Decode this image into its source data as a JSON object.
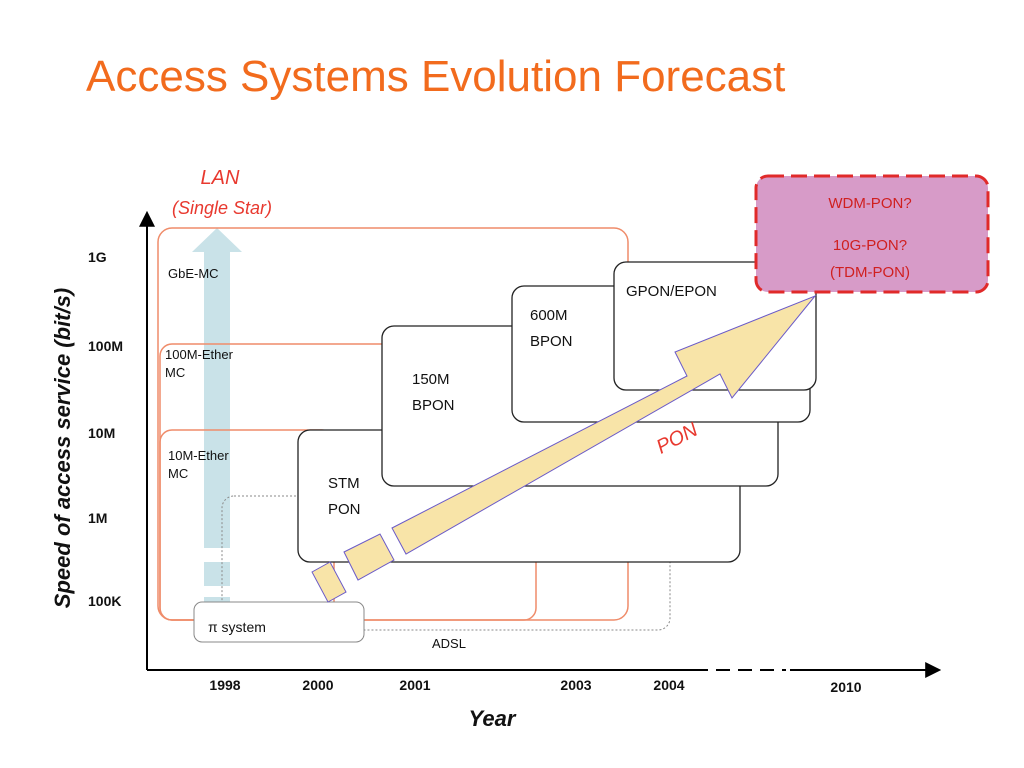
{
  "title": "Access Systems Evolution Forecast",
  "y_axis": {
    "label": "Speed of access service (bit/s)",
    "ticks": [
      "1G",
      "100M",
      "10M",
      "1M",
      "100K"
    ]
  },
  "x_axis": {
    "label": "Year",
    "ticks": [
      "1998",
      "2000",
      "2001",
      "2003",
      "2004",
      "2010"
    ]
  },
  "lan": {
    "line1": "LAN",
    "line2": "(Single Star)"
  },
  "systems": {
    "gbe": "GbE-MC",
    "ether100_1": "100M-Ether",
    "ether100_2": "MC",
    "ether10_1": "10M-Ether",
    "ether10_2": "MC",
    "stm_1": "STM",
    "stm_2": "PON",
    "bpon150_1": "150M",
    "bpon150_2": "BPON",
    "bpon600_1": "600M",
    "bpon600_2": "BPON",
    "gpon": "GPON/EPON",
    "pi_system": "π system",
    "adsl": "ADSL"
  },
  "pon_label": "PON",
  "future": {
    "line1": "WDM-PON?",
    "line2": "10G-PON?",
    "line3": "(TDM-PON)"
  },
  "colors": {
    "title": "#f26b1d",
    "lan": "#e8392f",
    "lan_boxes": "#ef8c6a",
    "arrow_fill": "#f8e4a8",
    "arrow_stroke": "#6a5ac8",
    "future_fill": "#d79bc8",
    "future_stroke": "#e02a2a",
    "lan_arrow": "#c9e2e8"
  }
}
